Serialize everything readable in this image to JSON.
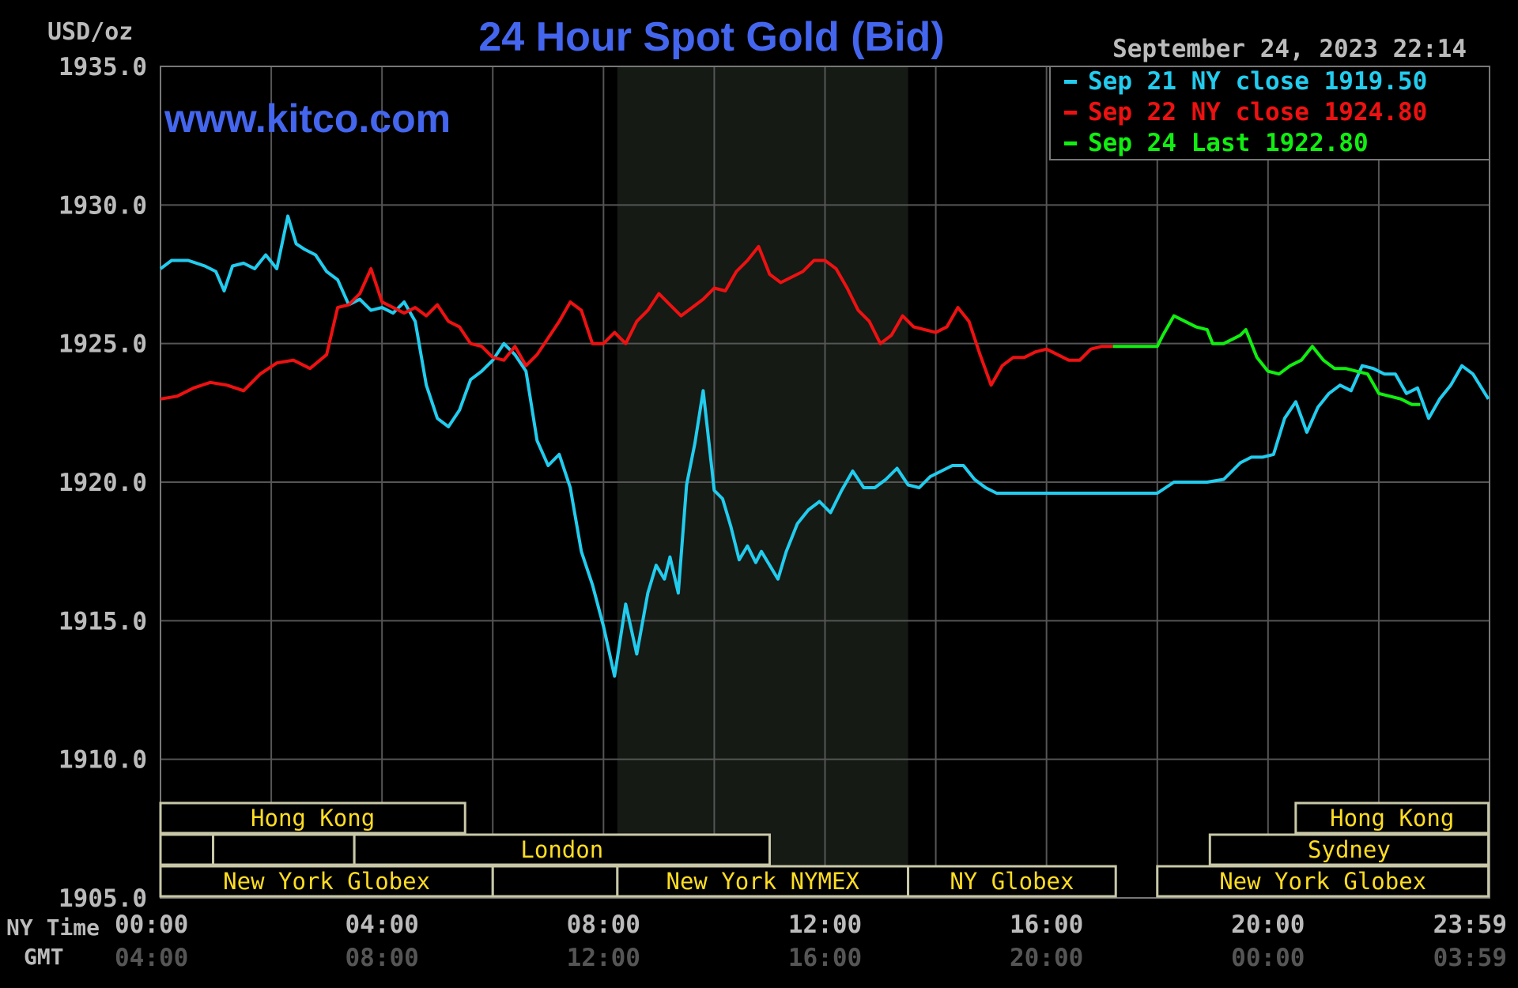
{
  "chart_data": {
    "type": "line",
    "title": "24 Hour Spot Gold (Bid)",
    "website": "www.kitco.com",
    "ylabel": "USD/oz",
    "timestamp": "September 24, 2023 22:14",
    "ylim": [
      1905,
      1935
    ],
    "xlim_hours": [
      0,
      24
    ],
    "y_ticks": [
      "1935.0",
      "1930.0",
      "1925.0",
      "1920.0",
      "1915.0",
      "1910.0",
      "1905.0"
    ],
    "y_tick_values": [
      1935,
      1930,
      1925,
      1920,
      1915,
      1910,
      1905
    ],
    "x_tick_hours": [
      0,
      4,
      8,
      12,
      16,
      20,
      23.98
    ],
    "x_ticks_ny": [
      "00:00",
      "04:00",
      "08:00",
      "12:00",
      "16:00",
      "20:00",
      "23:59"
    ],
    "x_ticks_gmt": [
      "04:00",
      "08:00",
      "12:00",
      "16:00",
      "20:00",
      "00:00",
      "03:59"
    ],
    "row_label_ny": "NY Time",
    "row_label_gmt": "GMT",
    "grid": true,
    "nymex_shade_hours": [
      8.25,
      13.5
    ],
    "legend_position": "top-right",
    "legend": [
      {
        "series": "Sep 21",
        "text": "Sep 21 NY close 1919.50",
        "color": "#22ccee"
      },
      {
        "series": "Sep 22",
        "text": "Sep 22 NY close 1924.80",
        "color": "#ee1111"
      },
      {
        "series": "Sep 24",
        "text": "Sep 24 Last 1922.80",
        "color": "#11ee11"
      }
    ],
    "series": [
      {
        "name": "Sep 21",
        "color": "#22ccee",
        "x": [
          0,
          0.2,
          0.5,
          0.8,
          1.0,
          1.15,
          1.3,
          1.5,
          1.7,
          1.9,
          2.1,
          2.3,
          2.45,
          2.6,
          2.8,
          3.0,
          3.2,
          3.4,
          3.6,
          3.8,
          4.0,
          4.2,
          4.4,
          4.6,
          4.8,
          5.0,
          5.2,
          5.4,
          5.6,
          5.8,
          6.0,
          6.2,
          6.4,
          6.6,
          6.8,
          7.0,
          7.2,
          7.4,
          7.6,
          7.8,
          8.0,
          8.2,
          8.4,
          8.6,
          8.8,
          8.95,
          9.1,
          9.2,
          9.35,
          9.5,
          9.65,
          9.8,
          10.0,
          10.15,
          10.3,
          10.45,
          10.6,
          10.75,
          10.85,
          11.0,
          11.15,
          11.3,
          11.5,
          11.7,
          11.9,
          12.1,
          12.3,
          12.5,
          12.7,
          12.9,
          13.1,
          13.3,
          13.5,
          13.7,
          13.9,
          14.1,
          14.3,
          14.5,
          14.7,
          14.9,
          15.1,
          15.3,
          15.5,
          15.7,
          15.9,
          16.1,
          16.3,
          16.5,
          17.0,
          17.5,
          18.0,
          18.3,
          18.6,
          18.9,
          19.2,
          19.5,
          19.7,
          19.9,
          20.1,
          20.3,
          20.5,
          20.7,
          20.9,
          21.1,
          21.3,
          21.5,
          21.7,
          21.9,
          22.1,
          22.3,
          22.5,
          22.7,
          22.9,
          23.1,
          23.3,
          23.5,
          23.7,
          23.98
        ],
        "values": [
          1927.7,
          1928.0,
          1928.0,
          1927.8,
          1927.6,
          1926.9,
          1927.8,
          1927.9,
          1927.7,
          1928.2,
          1927.7,
          1929.6,
          1928.6,
          1928.4,
          1928.2,
          1927.6,
          1927.3,
          1926.4,
          1926.6,
          1926.2,
          1926.3,
          1926.1,
          1926.5,
          1925.8,
          1923.5,
          1922.3,
          1922.0,
          1922.6,
          1923.7,
          1924.0,
          1924.4,
          1925.0,
          1924.6,
          1924.0,
          1921.5,
          1920.6,
          1921.0,
          1919.8,
          1917.5,
          1916.3,
          1914.8,
          1913.0,
          1915.6,
          1913.8,
          1916.0,
          1917.0,
          1916.5,
          1917.3,
          1916.0,
          1919.9,
          1921.4,
          1923.3,
          1919.7,
          1919.4,
          1918.4,
          1917.2,
          1917.7,
          1917.1,
          1917.5,
          1917.0,
          1916.5,
          1917.5,
          1918.5,
          1919.0,
          1919.3,
          1918.9,
          1919.7,
          1920.4,
          1919.8,
          1919.8,
          1920.1,
          1920.5,
          1919.9,
          1919.8,
          1920.2,
          1920.4,
          1920.6,
          1920.6,
          1920.1,
          1919.8,
          1919.6,
          1919.6,
          1919.6,
          1919.6,
          1919.6,
          1919.6,
          1919.6,
          1919.6,
          1919.6,
          1919.6,
          1919.6,
          1920.0,
          1920.0,
          1920.0,
          1920.1,
          1920.7,
          1920.9,
          1920.9,
          1921.0,
          1922.3,
          1922.9,
          1921.8,
          1922.7,
          1923.2,
          1923.5,
          1923.3,
          1924.2,
          1924.1,
          1923.9,
          1923.9,
          1923.2,
          1923.4,
          1922.3,
          1923.0,
          1923.5,
          1924.2,
          1923.9,
          1923.0
        ]
      },
      {
        "name": "Sep 22",
        "color": "#ee1111",
        "x": [
          0,
          0.3,
          0.6,
          0.9,
          1.2,
          1.5,
          1.8,
          2.1,
          2.4,
          2.7,
          3.0,
          3.2,
          3.4,
          3.6,
          3.8,
          4.0,
          4.2,
          4.4,
          4.6,
          4.8,
          5.0,
          5.2,
          5.4,
          5.6,
          5.8,
          6.0,
          6.2,
          6.4,
          6.6,
          6.8,
          7.0,
          7.2,
          7.4,
          7.6,
          7.8,
          8.0,
          8.2,
          8.4,
          8.6,
          8.8,
          9.0,
          9.2,
          9.4,
          9.6,
          9.8,
          10.0,
          10.2,
          10.4,
          10.6,
          10.8,
          11.0,
          11.2,
          11.4,
          11.6,
          11.8,
          12.0,
          12.2,
          12.4,
          12.6,
          12.8,
          13.0,
          13.2,
          13.4,
          13.6,
          13.8,
          14.0,
          14.2,
          14.4,
          14.6,
          14.8,
          15.0,
          15.2,
          15.4,
          15.6,
          15.8,
          16.0,
          16.2,
          16.4,
          16.6,
          16.8,
          17.0,
          17.2
        ],
        "values": [
          1923.0,
          1923.1,
          1923.4,
          1923.6,
          1923.5,
          1923.3,
          1923.9,
          1924.3,
          1924.4,
          1924.1,
          1924.6,
          1926.3,
          1926.4,
          1926.8,
          1927.7,
          1926.5,
          1926.3,
          1926.1,
          1926.3,
          1926.0,
          1926.4,
          1925.8,
          1925.6,
          1925.0,
          1924.9,
          1924.5,
          1924.4,
          1924.9,
          1924.2,
          1924.6,
          1925.2,
          1925.8,
          1926.5,
          1926.2,
          1925.0,
          1925.0,
          1925.4,
          1925.0,
          1925.8,
          1926.2,
          1926.8,
          1926.4,
          1926.0,
          1926.3,
          1926.6,
          1927.0,
          1926.9,
          1927.6,
          1928.0,
          1928.5,
          1927.5,
          1927.2,
          1927.4,
          1927.6,
          1928.0,
          1928.0,
          1927.7,
          1927.0,
          1926.2,
          1925.8,
          1925.0,
          1925.3,
          1926.0,
          1925.6,
          1925.5,
          1925.4,
          1925.6,
          1926.3,
          1925.8,
          1924.6,
          1923.5,
          1924.2,
          1924.5,
          1924.5,
          1924.7,
          1924.8,
          1924.6,
          1924.4,
          1924.4,
          1924.8,
          1924.9,
          1924.9
        ]
      },
      {
        "name": "Sep 24",
        "color": "#11ee11",
        "x": [
          17.2,
          17.5,
          17.8,
          18.0,
          18.1,
          18.3,
          18.5,
          18.7,
          18.9,
          19.0,
          19.2,
          19.4,
          19.5,
          19.6,
          19.8,
          20.0,
          20.2,
          20.4,
          20.6,
          20.8,
          21.0,
          21.2,
          21.4,
          21.6,
          21.8,
          22.0,
          22.2,
          22.4,
          22.6,
          22.75
        ],
        "values": [
          1924.9,
          1924.9,
          1924.9,
          1924.9,
          1925.3,
          1926.0,
          1925.8,
          1925.6,
          1925.5,
          1925.0,
          1925.0,
          1925.2,
          1925.3,
          1925.5,
          1924.5,
          1924.0,
          1923.9,
          1924.2,
          1924.4,
          1924.9,
          1924.4,
          1924.1,
          1924.1,
          1924.0,
          1923.9,
          1923.2,
          1923.1,
          1923.0,
          1922.8,
          1922.8
        ]
      }
    ],
    "sessions": [
      {
        "label": "Hong Kong",
        "row": 0,
        "start_h": 0,
        "end_h": 5.5,
        "show_label": true
      },
      {
        "label": "Hong Kong",
        "row": 0,
        "start_h": 20.5,
        "end_h": 23.98,
        "show_label": true
      },
      {
        "label": "",
        "row": 1,
        "start_h": 0,
        "end_h": 0.95,
        "show_label": false
      },
      {
        "label": "",
        "row": 1,
        "start_h": 0.95,
        "end_h": 3.5,
        "show_label": false
      },
      {
        "label": "London",
        "row": 1,
        "start_h": 3.5,
        "end_h": 11.0,
        "show_label": true
      },
      {
        "label": "Sydney",
        "row": 1,
        "start_h": 18.95,
        "end_h": 23.98,
        "show_label": true
      },
      {
        "label": "New York Globex",
        "row": 2,
        "start_h": 0,
        "end_h": 6.0,
        "show_label": true
      },
      {
        "label": "",
        "row": 2,
        "start_h": 6.0,
        "end_h": 8.25,
        "show_label": false
      },
      {
        "label": "New York NYMEX",
        "row": 2,
        "start_h": 8.25,
        "end_h": 13.5,
        "show_label": true
      },
      {
        "label": "NY Globex",
        "row": 2,
        "start_h": 13.5,
        "end_h": 17.25,
        "show_label": true
      },
      {
        "label": "New York Globex",
        "row": 2,
        "start_h": 18.0,
        "end_h": 23.98,
        "show_label": true
      }
    ]
  }
}
